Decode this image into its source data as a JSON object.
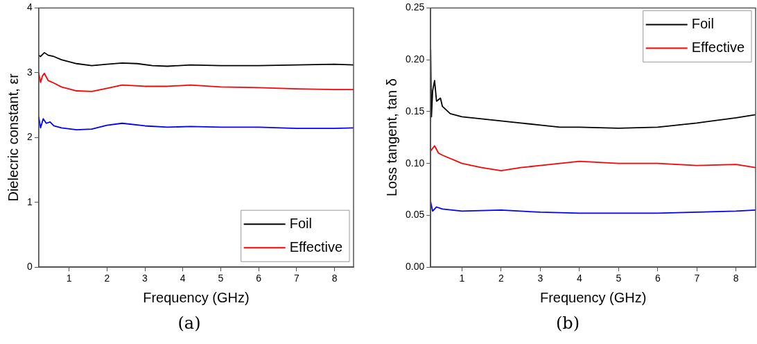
{
  "chart_data": [
    {
      "type": "line",
      "xlabel": "Frequency (GHz)",
      "ylabel": "Dielecric constant, εr",
      "annotations": [
        "(a)"
      ],
      "xlim": [
        0.2,
        8.5
      ],
      "xticks": [
        1,
        2,
        3,
        4,
        5,
        6,
        7,
        8
      ],
      "ylim": [
        0,
        4
      ],
      "yticks": [
        0,
        1,
        2,
        3,
        4
      ],
      "legend": "bottom right",
      "grid": false,
      "marker": "none",
      "line_style": "solid",
      "series": [
        {
          "name": "Foil",
          "color": "#000000",
          "x": [
            0.2,
            0.25,
            0.3,
            0.35,
            0.45,
            0.6,
            0.8,
            1.2,
            1.6,
            2.0,
            2.4,
            2.8,
            3.2,
            3.6,
            4.2,
            5,
            6,
            7,
            8,
            8.5
          ],
          "values": [
            3.27,
            3.25,
            3.28,
            3.31,
            3.27,
            3.25,
            3.2,
            3.14,
            3.11,
            3.13,
            3.15,
            3.14,
            3.11,
            3.1,
            3.12,
            3.11,
            3.11,
            3.12,
            3.13,
            3.12
          ]
        },
        {
          "name": "Effective",
          "color": "#ff0000",
          "x": [
            0.2,
            0.25,
            0.3,
            0.35,
            0.45,
            0.6,
            0.8,
            1.2,
            1.6,
            2.0,
            2.4,
            3,
            3.6,
            4.2,
            5,
            6,
            7,
            8,
            8.5
          ],
          "values": [
            3.0,
            2.85,
            2.95,
            2.99,
            2.88,
            2.84,
            2.78,
            2.72,
            2.71,
            2.76,
            2.81,
            2.79,
            2.79,
            2.81,
            2.78,
            2.77,
            2.75,
            2.74,
            2.74
          ]
        },
        {
          "color": "#0000ff",
          "x": [
            0.2,
            0.25,
            0.32,
            0.4,
            0.5,
            0.6,
            0.8,
            1.2,
            1.6,
            2.0,
            2.4,
            3,
            3.6,
            4.2,
            5,
            6,
            7,
            8,
            8.5
          ],
          "values": [
            2.32,
            2.15,
            2.29,
            2.22,
            2.24,
            2.18,
            2.15,
            2.12,
            2.13,
            2.19,
            2.22,
            2.18,
            2.16,
            2.17,
            2.16,
            2.16,
            2.14,
            2.14,
            2.15
          ]
        }
      ]
    },
    {
      "type": "line",
      "xlabel": "Frequency (GHz)",
      "ylabel": "Loss tangent, tan δ",
      "annotations": [
        "(b)"
      ],
      "xlim": [
        0.2,
        8.5
      ],
      "xticks": [
        1,
        2,
        3,
        4,
        5,
        6,
        7,
        8
      ],
      "ylim": [
        0,
        0.25
      ],
      "yticks": [
        {
          "value": 0,
          "label": "0.00"
        },
        {
          "value": 0.05,
          "label": "0.05"
        },
        {
          "value": 0.1,
          "label": "0.10"
        },
        {
          "value": 0.15,
          "label": "0.15"
        },
        {
          "value": 0.2,
          "label": "0.20"
        },
        {
          "value": 0.25,
          "label": "0.25"
        }
      ],
      "legend": "top right",
      "grid": false,
      "marker": "none",
      "line_style": "solid",
      "series": [
        {
          "name": "Foil",
          "color": "#000000",
          "x": [
            0.2,
            0.22,
            0.25,
            0.3,
            0.35,
            0.45,
            0.5,
            0.7,
            1,
            1.5,
            2,
            2.5,
            3,
            3.5,
            4,
            5,
            6,
            7,
            8,
            8.5
          ],
          "values": [
            0.21,
            0.145,
            0.17,
            0.18,
            0.16,
            0.163,
            0.155,
            0.148,
            0.145,
            0.143,
            0.141,
            0.139,
            0.137,
            0.135,
            0.135,
            0.134,
            0.135,
            0.139,
            0.144,
            0.147
          ]
        },
        {
          "name": "Effective",
          "color": "#ff0000",
          "x": [
            0.2,
            0.3,
            0.4,
            0.5,
            1,
            1.5,
            2,
            2.5,
            3,
            3.5,
            4,
            4.5,
            5,
            6,
            7,
            8,
            8.5
          ],
          "values": [
            0.112,
            0.117,
            0.11,
            0.108,
            0.1,
            0.096,
            0.093,
            0.096,
            0.098,
            0.1,
            0.102,
            0.101,
            0.1,
            0.1,
            0.098,
            0.099,
            0.096
          ]
        },
        {
          "color": "#0000ff",
          "x": [
            0.2,
            0.25,
            0.35,
            0.5,
            1,
            2,
            3,
            4,
            5,
            6,
            7,
            8,
            8.5
          ],
          "values": [
            0.063,
            0.054,
            0.058,
            0.056,
            0.054,
            0.055,
            0.053,
            0.052,
            0.052,
            0.052,
            0.053,
            0.054,
            0.055
          ]
        }
      ]
    }
  ]
}
